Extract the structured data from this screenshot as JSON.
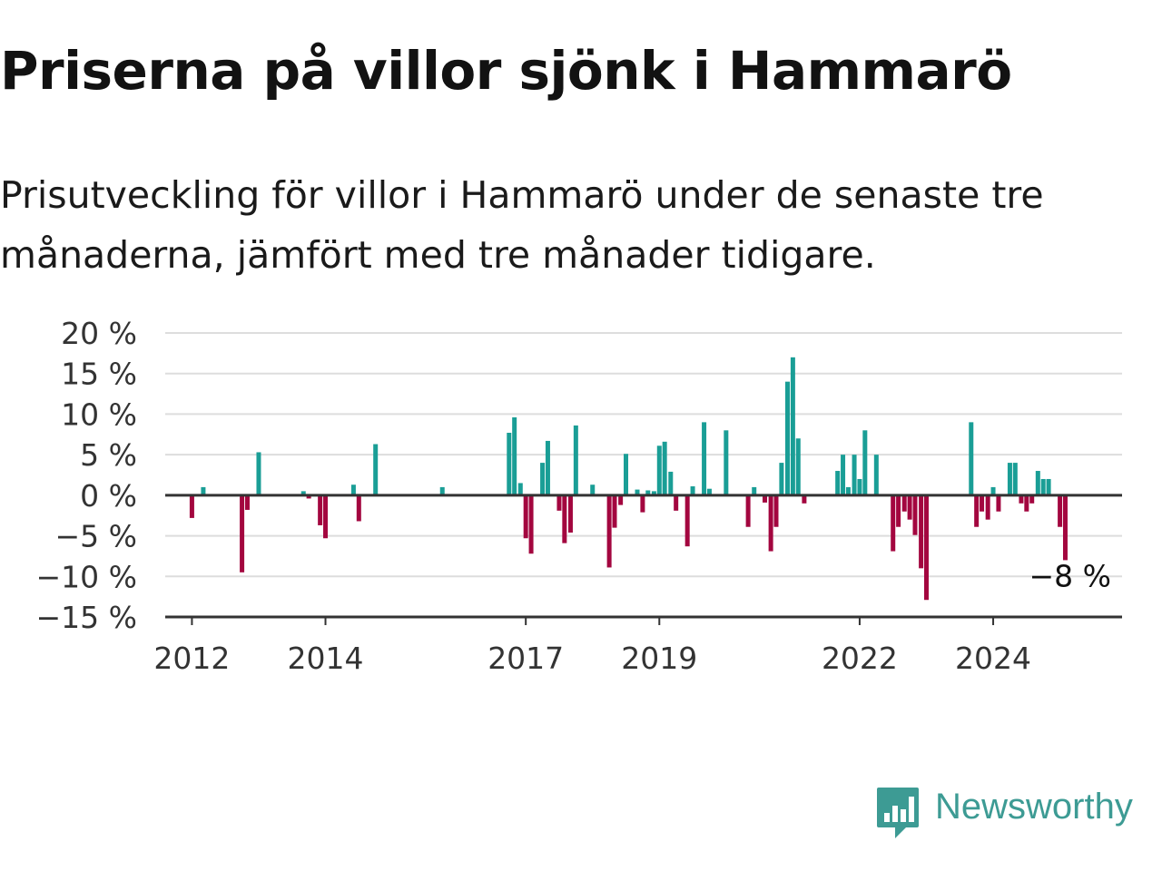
{
  "title": "Priserna på villor sjönk i Hammarö",
  "subtitle": "Prisutveckling för villor i Hammarö under de senaste tre månaderna, jämfört med tre månader tidigare.",
  "brand": {
    "name": "Newsworthy",
    "icon": "newsworthy-logo-icon",
    "color": "#3d9b94"
  },
  "chart_data": {
    "type": "bar",
    "positive_color": "#1a9e96",
    "negative_color": "#a3063f",
    "ylim": [
      -15,
      20
    ],
    "yticks": [
      {
        "value": 20,
        "label": "20 %"
      },
      {
        "value": 15,
        "label": "15 %"
      },
      {
        "value": 10,
        "label": "10 %"
      },
      {
        "value": 5,
        "label": "5 %"
      },
      {
        "value": 0,
        "label": "0 %"
      },
      {
        "value": -5,
        "label": "−5 %"
      },
      {
        "value": -10,
        "label": "−10 %"
      },
      {
        "value": -15,
        "label": "−15 %"
      }
    ],
    "xlim": [
      2011.6,
      2025.93
    ],
    "xticks": [
      {
        "value": 2012,
        "label": "2012"
      },
      {
        "value": 2014,
        "label": "2014"
      },
      {
        "value": 2017,
        "label": "2017"
      },
      {
        "value": 2019,
        "label": "2019"
      },
      {
        "value": 2022,
        "label": "2022"
      },
      {
        "value": 2024,
        "label": "2024"
      }
    ],
    "grid": true,
    "last_value_label": "−8 %",
    "points": [
      {
        "x": 2012.0,
        "y": -2.8
      },
      {
        "x": 2012.17,
        "y": 1.0
      },
      {
        "x": 2012.75,
        "y": -9.5
      },
      {
        "x": 2012.83,
        "y": -1.8
      },
      {
        "x": 2013.0,
        "y": 5.3
      },
      {
        "x": 2013.67,
        "y": 0.5
      },
      {
        "x": 2013.75,
        "y": -0.4
      },
      {
        "x": 2013.92,
        "y": -3.7
      },
      {
        "x": 2014.0,
        "y": -5.3
      },
      {
        "x": 2014.42,
        "y": 1.3
      },
      {
        "x": 2014.5,
        "y": -3.2
      },
      {
        "x": 2014.75,
        "y": 6.3
      },
      {
        "x": 2015.75,
        "y": 1.0
      },
      {
        "x": 2016.75,
        "y": 7.7
      },
      {
        "x": 2016.83,
        "y": 9.6
      },
      {
        "x": 2016.92,
        "y": 1.5
      },
      {
        "x": 2017.0,
        "y": -5.3
      },
      {
        "x": 2017.08,
        "y": -7.2
      },
      {
        "x": 2017.25,
        "y": 4.0
      },
      {
        "x": 2017.33,
        "y": 6.7
      },
      {
        "x": 2017.5,
        "y": -1.9
      },
      {
        "x": 2017.58,
        "y": -5.9
      },
      {
        "x": 2017.67,
        "y": -4.6
      },
      {
        "x": 2017.75,
        "y": 8.6
      },
      {
        "x": 2018.0,
        "y": 1.3
      },
      {
        "x": 2018.25,
        "y": -8.9
      },
      {
        "x": 2018.33,
        "y": -4.0
      },
      {
        "x": 2018.42,
        "y": -1.2
      },
      {
        "x": 2018.5,
        "y": 5.1
      },
      {
        "x": 2018.67,
        "y": 0.7
      },
      {
        "x": 2018.75,
        "y": -2.1
      },
      {
        "x": 2018.83,
        "y": 0.6
      },
      {
        "x": 2018.92,
        "y": 0.5
      },
      {
        "x": 2019.0,
        "y": 6.1
      },
      {
        "x": 2019.08,
        "y": 6.6
      },
      {
        "x": 2019.17,
        "y": 2.9
      },
      {
        "x": 2019.25,
        "y": -1.9
      },
      {
        "x": 2019.42,
        "y": -6.3
      },
      {
        "x": 2019.5,
        "y": 1.1
      },
      {
        "x": 2019.67,
        "y": 9.0
      },
      {
        "x": 2019.75,
        "y": 0.8
      },
      {
        "x": 2020.0,
        "y": 8.0
      },
      {
        "x": 2020.33,
        "y": -3.9
      },
      {
        "x": 2020.42,
        "y": 1.0
      },
      {
        "x": 2020.58,
        "y": -0.9
      },
      {
        "x": 2020.67,
        "y": -6.9
      },
      {
        "x": 2020.75,
        "y": -3.9
      },
      {
        "x": 2020.83,
        "y": 4.0
      },
      {
        "x": 2020.92,
        "y": 14.0
      },
      {
        "x": 2021.0,
        "y": 17.0
      },
      {
        "x": 2021.08,
        "y": 7.0
      },
      {
        "x": 2021.17,
        "y": -1.0
      },
      {
        "x": 2021.67,
        "y": 3.0
      },
      {
        "x": 2021.75,
        "y": 5.0
      },
      {
        "x": 2021.83,
        "y": 1.0
      },
      {
        "x": 2021.92,
        "y": 5.0
      },
      {
        "x": 2022.0,
        "y": 2.0
      },
      {
        "x": 2022.08,
        "y": 8.0
      },
      {
        "x": 2022.25,
        "y": 5.0
      },
      {
        "x": 2022.5,
        "y": -6.9
      },
      {
        "x": 2022.58,
        "y": -3.9
      },
      {
        "x": 2022.67,
        "y": -2.0
      },
      {
        "x": 2022.75,
        "y": -3.0
      },
      {
        "x": 2022.83,
        "y": -4.9
      },
      {
        "x": 2022.92,
        "y": -9.0
      },
      {
        "x": 2023.0,
        "y": -12.9
      },
      {
        "x": 2023.67,
        "y": 9.0
      },
      {
        "x": 2023.75,
        "y": -3.9
      },
      {
        "x": 2023.83,
        "y": -2.0
      },
      {
        "x": 2023.92,
        "y": -3.0
      },
      {
        "x": 2024.0,
        "y": 1.0
      },
      {
        "x": 2024.08,
        "y": -2.0
      },
      {
        "x": 2024.25,
        "y": 4.0
      },
      {
        "x": 2024.33,
        "y": 4.0
      },
      {
        "x": 2024.42,
        "y": -1.0
      },
      {
        "x": 2024.5,
        "y": -2.0
      },
      {
        "x": 2024.58,
        "y": -1.0
      },
      {
        "x": 2024.67,
        "y": 3.0
      },
      {
        "x": 2024.75,
        "y": 2.0
      },
      {
        "x": 2024.83,
        "y": 2.0
      },
      {
        "x": 2025.0,
        "y": -3.9
      },
      {
        "x": 2025.08,
        "y": -8.0
      }
    ]
  }
}
